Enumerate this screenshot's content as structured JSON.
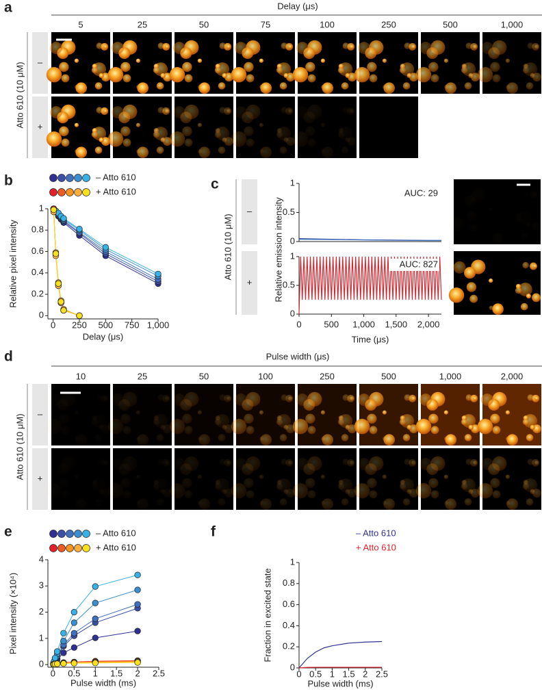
{
  "panel_letters": [
    "a",
    "b",
    "c",
    "d",
    "e",
    "f"
  ],
  "panel_a": {
    "header": "Delay (μs)",
    "columns": [
      "5",
      "25",
      "50",
      "75",
      "100",
      "250",
      "500",
      "1,000"
    ],
    "row_label": "Atto 610 (10 μM)",
    "rows": [
      "–",
      "+"
    ]
  },
  "panel_c": {
    "row_label": "Atto 610 (10 μM)",
    "rows": [
      "–",
      "+"
    ]
  },
  "panel_d": {
    "header": "Pulse width (μs)",
    "columns": [
      "10",
      "25",
      "50",
      "100",
      "250",
      "500",
      "1,000",
      "2,000"
    ],
    "row_label": "Atto 610 (10 μM)",
    "rows": [
      "–",
      "+"
    ]
  },
  "chart_data": [
    {
      "type": "line",
      "markers": true,
      "xlabel": "Delay (μs)",
      "ylabel": "Relative pixel intensity",
      "xlim": [
        -50,
        1000
      ],
      "ylim": [
        -0.03,
        1
      ],
      "xticks": [
        0,
        250,
        500,
        750,
        {
          "value": 1000,
          "label": "1,000"
        }
      ],
      "yticks": [
        0,
        0.2,
        0.4,
        0.6,
        0.8,
        1
      ],
      "groups": [
        {
          "name": "– Atto 610",
          "series": [
            {
              "color": "#2e3192",
              "x": [
                5,
                25,
                50,
                75,
                100,
                250,
                500,
                1000
              ],
              "values": [
                1,
                0.97,
                0.93,
                0.9,
                0.87,
                0.75,
                0.56,
                0.3
              ]
            },
            {
              "color": "#3a4fa8",
              "x": [
                5,
                25,
                50,
                75,
                100,
                250,
                500,
                1000
              ],
              "values": [
                1,
                0.97,
                0.94,
                0.91,
                0.88,
                0.77,
                0.58,
                0.32
              ]
            },
            {
              "color": "#3f6fbf",
              "x": [
                5,
                25,
                50,
                75,
                100,
                250,
                500,
                1000
              ],
              "values": [
                1,
                0.98,
                0.95,
                0.92,
                0.89,
                0.78,
                0.6,
                0.34
              ]
            },
            {
              "color": "#3a8fd0",
              "x": [
                5,
                25,
                50,
                75,
                100,
                250,
                500,
                1000
              ],
              "values": [
                1,
                0.98,
                0.95,
                0.92,
                0.9,
                0.8,
                0.62,
                0.37
              ]
            },
            {
              "color": "#37b1e6",
              "x": [
                5,
                25,
                50,
                75,
                100,
                250,
                500,
                1000
              ],
              "values": [
                1,
                0.98,
                0.96,
                0.93,
                0.91,
                0.81,
                0.64,
                0.39
              ]
            }
          ]
        },
        {
          "name": "+ Atto 610",
          "series": [
            {
              "color": "#e4202a",
              "x": [
                5,
                25,
                50,
                75,
                100,
                250
              ],
              "values": [
                1,
                0.58,
                0.3,
                0.13,
                0.05,
                0
              ]
            },
            {
              "color": "#ef5a24",
              "x": [
                5,
                25,
                50,
                75,
                100,
                250
              ],
              "values": [
                0.99,
                0.57,
                0.29,
                0.12,
                0.05,
                0
              ]
            },
            {
              "color": "#f7941d",
              "x": [
                5,
                25,
                50,
                75,
                100,
                250
              ],
              "values": [
                0.98,
                0.59,
                0.31,
                0.14,
                0.06,
                0
              ]
            },
            {
              "color": "#fbb040",
              "x": [
                5,
                25,
                50,
                75,
                100,
                250
              ],
              "values": [
                0.97,
                0.56,
                0.28,
                0.12,
                0.05,
                0
              ]
            },
            {
              "color": "#f9e11e",
              "x": [
                5,
                25,
                50,
                75,
                100,
                250
              ],
              "values": [
                0.99,
                0.58,
                0.3,
                0.13,
                0.05,
                0
              ]
            }
          ]
        }
      ]
    },
    {
      "type": "line",
      "xlim": [
        0,
        2200
      ],
      "ylim": [
        0,
        1
      ],
      "yticks": [
        0,
        0.5,
        1
      ],
      "annotation": "AUC: 29",
      "series": [
        {
          "color": "#2e3192",
          "x": [
            0,
            500,
            1000,
            1500,
            2000,
            2200
          ],
          "values": [
            0.05,
            0.04,
            0.03,
            0.025,
            0.02,
            0.02
          ]
        },
        {
          "color": "#3b6fc0",
          "x": [
            0,
            500,
            1000,
            1500,
            2000,
            2200
          ],
          "values": [
            0.04,
            0.035,
            0.028,
            0.022,
            0.018,
            0.018
          ]
        }
      ]
    },
    {
      "type": "line",
      "xlabel": "Time (μs)",
      "ylabel": "Relative emission intensity",
      "xlim": [
        0,
        2200
      ],
      "ylim": [
        0,
        1
      ],
      "xticks": [
        0,
        500,
        {
          "value": 1000,
          "label": "1,000"
        },
        {
          "value": 1500,
          "label": "1,500"
        },
        {
          "value": 2000,
          "label": "2,000"
        }
      ],
      "yticks": [
        0,
        0.5,
        1
      ],
      "annotation": "AUC: 827",
      "series": [
        {
          "color": "#d7262e",
          "x": [
            0,
            25,
            50,
            75,
            100,
            125,
            150,
            175,
            200,
            225,
            250,
            275,
            300,
            325,
            350,
            375,
            400,
            425,
            450,
            475,
            500,
            525,
            550,
            575,
            600,
            625,
            650,
            675,
            700,
            725,
            750,
            775,
            800,
            825,
            850,
            875,
            900,
            925,
            950,
            975,
            1000,
            1025,
            1050,
            1075,
            1100,
            1125,
            1150,
            1175,
            1200,
            1225,
            1250,
            1275,
            1300,
            1325,
            1350,
            1375,
            1400,
            1425,
            1450,
            1475,
            1500,
            1525,
            1550,
            1575,
            1600,
            1625,
            1650,
            1675,
            1700,
            1725,
            1750,
            1775,
            1800,
            1825,
            1850,
            1875,
            1900,
            1925,
            1950,
            1975,
            2000,
            2025,
            2050,
            2075,
            2100,
            2125,
            2150,
            2175,
            2200
          ],
          "values": [
            0,
            1,
            0.25,
            1,
            0.25,
            1,
            0.25,
            1,
            0.25,
            1,
            0.25,
            1,
            0.25,
            1,
            0.25,
            1,
            0.25,
            1,
            0.25,
            1,
            0.25,
            1,
            0.25,
            1,
            0.25,
            1,
            0.25,
            1,
            0.25,
            1,
            0.25,
            1,
            0.25,
            1,
            0.25,
            1,
            0.25,
            1,
            0.25,
            1,
            0.25,
            1,
            0.25,
            1,
            0.25,
            1,
            0.25,
            1,
            0.25,
            1,
            0.25,
            1,
            0.25,
            1,
            0.25,
            1,
            0.25,
            1,
            0.25,
            1,
            0.25,
            1,
            0.25,
            1,
            0.25,
            1,
            0.25,
            1,
            0.25,
            1,
            0.25,
            1,
            0.25,
            1,
            0.25,
            1,
            0.25,
            1,
            0.25,
            1,
            0.25,
            1,
            0.25,
            1,
            0.25,
            1,
            0.25,
            1,
            0.25
          ]
        }
      ]
    },
    {
      "type": "line",
      "markers": true,
      "xlabel": "Pulse width (ms)",
      "ylabel": "Pixel intensity (×10⁴)",
      "xlim": [
        -0.12,
        2.5
      ],
      "ylim": [
        -0.1,
        4
      ],
      "xticks": [
        0,
        0.5,
        1,
        1.5,
        2,
        2.5
      ],
      "yticks": [
        0,
        1,
        2,
        3,
        4
      ],
      "groups": [
        {
          "name": "– Atto 610",
          "series": [
            {
              "color": "#2e3192",
              "x": [
                0.01,
                0.025,
                0.05,
                0.1,
                0.25,
                0.5,
                1,
                2
              ],
              "values": [
                0.02,
                0.05,
                0.1,
                0.2,
                0.45,
                0.65,
                1.02,
                1.28
              ]
            },
            {
              "color": "#3a4fa8",
              "x": [
                0.01,
                0.025,
                0.05,
                0.1,
                0.25,
                0.5,
                1,
                2
              ],
              "values": [
                0.03,
                0.08,
                0.15,
                0.3,
                0.7,
                1.1,
                1.6,
                2.15
              ]
            },
            {
              "color": "#3f6fbf",
              "x": [
                0.01,
                0.025,
                0.05,
                0.1,
                0.25,
                0.5,
                1,
                2
              ],
              "values": [
                0.03,
                0.08,
                0.16,
                0.32,
                0.75,
                1.2,
                1.75,
                2.3
              ]
            },
            {
              "color": "#3a8fd0",
              "x": [
                0.01,
                0.025,
                0.05,
                0.1,
                0.25,
                0.5,
                1,
                2
              ],
              "values": [
                0.04,
                0.1,
                0.2,
                0.4,
                0.9,
                1.6,
                2.35,
                2.85
              ]
            },
            {
              "color": "#37b1e6",
              "x": [
                0.01,
                0.025,
                0.05,
                0.1,
                0.25,
                0.5,
                1,
                2
              ],
              "values": [
                0.05,
                0.12,
                0.25,
                0.5,
                1.2,
                2,
                2.98,
                3.42
              ]
            }
          ]
        },
        {
          "name": "+ Atto 610",
          "series": [
            {
              "color": "#e4202a",
              "x": [
                0.01,
                0.025,
                0.05,
                0.1,
                0.25,
                0.5,
                1,
                2
              ],
              "values": [
                0.01,
                0.02,
                0.03,
                0.05,
                0.08,
                0.1,
                0.13,
                0.15
              ]
            },
            {
              "color": "#ef5a24",
              "x": [
                0.01,
                0.025,
                0.05,
                0.1,
                0.25,
                0.5,
                1,
                2
              ],
              "values": [
                0.01,
                0.02,
                0.03,
                0.04,
                0.07,
                0.09,
                0.12,
                0.14
              ]
            },
            {
              "color": "#f7941d",
              "x": [
                0.01,
                0.025,
                0.05,
                0.1,
                0.25,
                0.5,
                1,
                2
              ],
              "values": [
                0.01,
                0.02,
                0.02,
                0.04,
                0.06,
                0.08,
                0.1,
                0.12
              ]
            },
            {
              "color": "#fbb040",
              "x": [
                0.01,
                0.025,
                0.05,
                0.1,
                0.25,
                0.5,
                1,
                2
              ],
              "values": [
                0.01,
                0.01,
                0.02,
                0.03,
                0.05,
                0.07,
                0.08,
                0.1
              ]
            },
            {
              "color": "#f9e11e",
              "x": [
                0.01,
                0.025,
                0.05,
                0.1,
                0.25,
                0.5,
                1,
                2
              ],
              "values": [
                0.01,
                0.01,
                0.02,
                0.03,
                0.04,
                0.05,
                0.06,
                0.08
              ]
            }
          ]
        }
      ]
    },
    {
      "type": "line",
      "xlabel": "Pulse width (ms)",
      "ylabel": "Fraction in excited state",
      "xlim": [
        0,
        2.5
      ],
      "ylim": [
        0,
        1
      ],
      "xticks": [
        0,
        0.5,
        1,
        1.5,
        2,
        2.5
      ],
      "yticks": [
        0,
        0.2,
        0.4,
        0.6,
        0.8,
        1
      ],
      "series": [
        {
          "name": "– Atto 610",
          "color": "#2e3192",
          "x": [
            0,
            0.25,
            0.5,
            0.75,
            1,
            1.5,
            2,
            2.5
          ],
          "values": [
            0,
            0.09,
            0.15,
            0.19,
            0.21,
            0.235,
            0.245,
            0.25
          ]
        },
        {
          "name": "+ Atto 610",
          "color": "#e4202a",
          "x": [
            0,
            0.25,
            0.5,
            0.75,
            1,
            1.5,
            2,
            2.5
          ],
          "values": [
            0,
            0.005,
            0.006,
            0.006,
            0.006,
            0.006,
            0.006,
            0.006
          ]
        }
      ]
    }
  ]
}
